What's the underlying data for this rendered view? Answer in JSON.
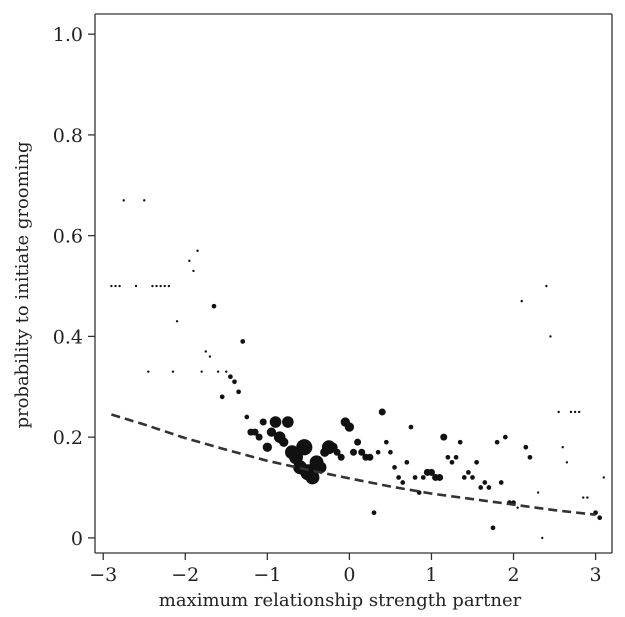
{
  "chart_data": {
    "type": "scatter",
    "title": "",
    "xlabel": "maximum relationship strength partner",
    "ylabel": "probability to initiate grooming",
    "xlim": [
      -3.1,
      3.2
    ],
    "ylim": [
      -0.03,
      1.04
    ],
    "xticks": [
      -3,
      -2,
      -1,
      0,
      1,
      2,
      3
    ],
    "xtick_labels": [
      "−3",
      "−2",
      "−1",
      "0",
      "1",
      "2",
      "3"
    ],
    "yticks": [
      0,
      0.2,
      0.4,
      0.6,
      0.8,
      1.0
    ],
    "ytick_labels": [
      "0",
      "0.2",
      "0.4",
      "0.6",
      "0.8",
      "1.0"
    ],
    "grid": false,
    "legend": "none",
    "colors": {
      "points": "#111111",
      "fit_line": "#333333",
      "axes": "#333333"
    },
    "marker_size_encoding": "number of observations (relative)",
    "points": [
      {
        "x": -2.9,
        "y": 0.5,
        "s": 1
      },
      {
        "x": -2.85,
        "y": 0.5,
        "s": 1
      },
      {
        "x": -2.8,
        "y": 0.5,
        "s": 1
      },
      {
        "x": -2.75,
        "y": 0.67,
        "s": 1
      },
      {
        "x": -2.6,
        "y": 0.5,
        "s": 1
      },
      {
        "x": -2.5,
        "y": 0.67,
        "s": 1
      },
      {
        "x": -2.45,
        "y": 0.33,
        "s": 1
      },
      {
        "x": -2.4,
        "y": 0.5,
        "s": 1
      },
      {
        "x": -2.35,
        "y": 0.5,
        "s": 1
      },
      {
        "x": -2.3,
        "y": 0.5,
        "s": 1
      },
      {
        "x": -2.25,
        "y": 0.5,
        "s": 1
      },
      {
        "x": -2.2,
        "y": 0.5,
        "s": 1
      },
      {
        "x": -2.15,
        "y": 0.33,
        "s": 1
      },
      {
        "x": -2.1,
        "y": 0.43,
        "s": 1
      },
      {
        "x": -2.05,
        "y": 0.2,
        "s": 1
      },
      {
        "x": -1.95,
        "y": 0.55,
        "s": 1
      },
      {
        "x": -1.9,
        "y": 0.53,
        "s": 1
      },
      {
        "x": -1.85,
        "y": 0.57,
        "s": 1
      },
      {
        "x": -1.8,
        "y": 0.33,
        "s": 1
      },
      {
        "x": -1.75,
        "y": 0.37,
        "s": 1
      },
      {
        "x": -1.7,
        "y": 0.36,
        "s": 1
      },
      {
        "x": -1.65,
        "y": 0.46,
        "s": 2
      },
      {
        "x": -1.6,
        "y": 0.33,
        "s": 1
      },
      {
        "x": -1.55,
        "y": 0.28,
        "s": 2
      },
      {
        "x": -1.5,
        "y": 0.33,
        "s": 1
      },
      {
        "x": -1.45,
        "y": 0.32,
        "s": 2
      },
      {
        "x": -1.4,
        "y": 0.31,
        "s": 2
      },
      {
        "x": -1.35,
        "y": 0.29,
        "s": 2
      },
      {
        "x": -1.3,
        "y": 0.39,
        "s": 2
      },
      {
        "x": -1.25,
        "y": 0.24,
        "s": 2
      },
      {
        "x": -1.2,
        "y": 0.21,
        "s": 3
      },
      {
        "x": -1.15,
        "y": 0.21,
        "s": 3
      },
      {
        "x": -1.1,
        "y": 0.2,
        "s": 3
      },
      {
        "x": -1.05,
        "y": 0.23,
        "s": 3
      },
      {
        "x": -1.0,
        "y": 0.18,
        "s": 4
      },
      {
        "x": -0.95,
        "y": 0.21,
        "s": 4
      },
      {
        "x": -0.9,
        "y": 0.23,
        "s": 5
      },
      {
        "x": -0.85,
        "y": 0.2,
        "s": 5
      },
      {
        "x": -0.8,
        "y": 0.19,
        "s": 4
      },
      {
        "x": -0.75,
        "y": 0.23,
        "s": 5
      },
      {
        "x": -0.7,
        "y": 0.17,
        "s": 6
      },
      {
        "x": -0.65,
        "y": 0.16,
        "s": 6
      },
      {
        "x": -0.6,
        "y": 0.14,
        "s": 6
      },
      {
        "x": -0.55,
        "y": 0.18,
        "s": 7
      },
      {
        "x": -0.5,
        "y": 0.13,
        "s": 7
      },
      {
        "x": -0.45,
        "y": 0.12,
        "s": 6
      },
      {
        "x": -0.4,
        "y": 0.15,
        "s": 6
      },
      {
        "x": -0.35,
        "y": 0.14,
        "s": 5
      },
      {
        "x": -0.3,
        "y": 0.17,
        "s": 4
      },
      {
        "x": -0.25,
        "y": 0.18,
        "s": 6
      },
      {
        "x": -0.2,
        "y": 0.18,
        "s": 4
      },
      {
        "x": -0.15,
        "y": 0.17,
        "s": 3
      },
      {
        "x": -0.1,
        "y": 0.16,
        "s": 3
      },
      {
        "x": -0.05,
        "y": 0.23,
        "s": 4
      },
      {
        "x": 0.0,
        "y": 0.22,
        "s": 4
      },
      {
        "x": 0.05,
        "y": 0.17,
        "s": 3
      },
      {
        "x": 0.1,
        "y": 0.19,
        "s": 3
      },
      {
        "x": 0.15,
        "y": 0.17,
        "s": 3
      },
      {
        "x": 0.2,
        "y": 0.16,
        "s": 3
      },
      {
        "x": 0.25,
        "y": 0.16,
        "s": 3
      },
      {
        "x": 0.3,
        "y": 0.05,
        "s": 2
      },
      {
        "x": 0.35,
        "y": 0.17,
        "s": 2
      },
      {
        "x": 0.4,
        "y": 0.25,
        "s": 3
      },
      {
        "x": 0.45,
        "y": 0.19,
        "s": 2
      },
      {
        "x": 0.5,
        "y": 0.17,
        "s": 2
      },
      {
        "x": 0.55,
        "y": 0.14,
        "s": 2
      },
      {
        "x": 0.6,
        "y": 0.12,
        "s": 2
      },
      {
        "x": 0.65,
        "y": 0.11,
        "s": 2
      },
      {
        "x": 0.7,
        "y": 0.15,
        "s": 2
      },
      {
        "x": 0.75,
        "y": 0.22,
        "s": 2
      },
      {
        "x": 0.8,
        "y": 0.12,
        "s": 2
      },
      {
        "x": 0.85,
        "y": 0.09,
        "s": 2
      },
      {
        "x": 0.9,
        "y": 0.12,
        "s": 2
      },
      {
        "x": 0.95,
        "y": 0.13,
        "s": 3
      },
      {
        "x": 1.0,
        "y": 0.13,
        "s": 3
      },
      {
        "x": 1.05,
        "y": 0.12,
        "s": 3
      },
      {
        "x": 1.1,
        "y": 0.12,
        "s": 3
      },
      {
        "x": 1.15,
        "y": 0.2,
        "s": 3
      },
      {
        "x": 1.2,
        "y": 0.16,
        "s": 2
      },
      {
        "x": 1.25,
        "y": 0.15,
        "s": 2
      },
      {
        "x": 1.3,
        "y": 0.16,
        "s": 2
      },
      {
        "x": 1.35,
        "y": 0.19,
        "s": 2
      },
      {
        "x": 1.4,
        "y": 0.12,
        "s": 2
      },
      {
        "x": 1.45,
        "y": 0.13,
        "s": 2
      },
      {
        "x": 1.5,
        "y": 0.12,
        "s": 2
      },
      {
        "x": 1.55,
        "y": 0.15,
        "s": 2
      },
      {
        "x": 1.6,
        "y": 0.1,
        "s": 2
      },
      {
        "x": 1.65,
        "y": 0.11,
        "s": 2
      },
      {
        "x": 1.7,
        "y": 0.1,
        "s": 2
      },
      {
        "x": 1.75,
        "y": 0.02,
        "s": 2
      },
      {
        "x": 1.8,
        "y": 0.19,
        "s": 2
      },
      {
        "x": 1.85,
        "y": 0.11,
        "s": 2
      },
      {
        "x": 1.9,
        "y": 0.2,
        "s": 2
      },
      {
        "x": 1.95,
        "y": 0.07,
        "s": 2
      },
      {
        "x": 2.0,
        "y": 0.07,
        "s": 2
      },
      {
        "x": 2.05,
        "y": 0.06,
        "s": 1
      },
      {
        "x": 2.1,
        "y": 0.47,
        "s": 1
      },
      {
        "x": 2.15,
        "y": 0.18,
        "s": 2
      },
      {
        "x": 2.2,
        "y": 0.16,
        "s": 2
      },
      {
        "x": 2.3,
        "y": 0.09,
        "s": 1
      },
      {
        "x": 2.35,
        "y": 0.0,
        "s": 1
      },
      {
        "x": 2.4,
        "y": 0.5,
        "s": 1
      },
      {
        "x": 2.45,
        "y": 0.4,
        "s": 1
      },
      {
        "x": 2.55,
        "y": 0.25,
        "s": 1
      },
      {
        "x": 2.6,
        "y": 0.18,
        "s": 1
      },
      {
        "x": 2.65,
        "y": 0.15,
        "s": 1
      },
      {
        "x": 2.7,
        "y": 0.25,
        "s": 1
      },
      {
        "x": 2.75,
        "y": 0.25,
        "s": 1
      },
      {
        "x": 2.8,
        "y": 0.25,
        "s": 1
      },
      {
        "x": 2.85,
        "y": 0.08,
        "s": 1
      },
      {
        "x": 2.9,
        "y": 0.08,
        "s": 1
      },
      {
        "x": 3.0,
        "y": 0.05,
        "s": 2
      },
      {
        "x": 3.05,
        "y": 0.04,
        "s": 2
      },
      {
        "x": 3.1,
        "y": 0.12,
        "s": 1
      }
    ],
    "fit_line": {
      "style": "dashed",
      "x": [
        -2.9,
        -2.5,
        -2.0,
        -1.5,
        -1.0,
        -0.5,
        0.0,
        0.5,
        1.0,
        1.5,
        2.0,
        2.5,
        3.0
      ],
      "y": [
        0.245,
        0.225,
        0.198,
        0.175,
        0.153,
        0.135,
        0.118,
        0.102,
        0.088,
        0.077,
        0.066,
        0.055,
        0.046
      ]
    }
  }
}
